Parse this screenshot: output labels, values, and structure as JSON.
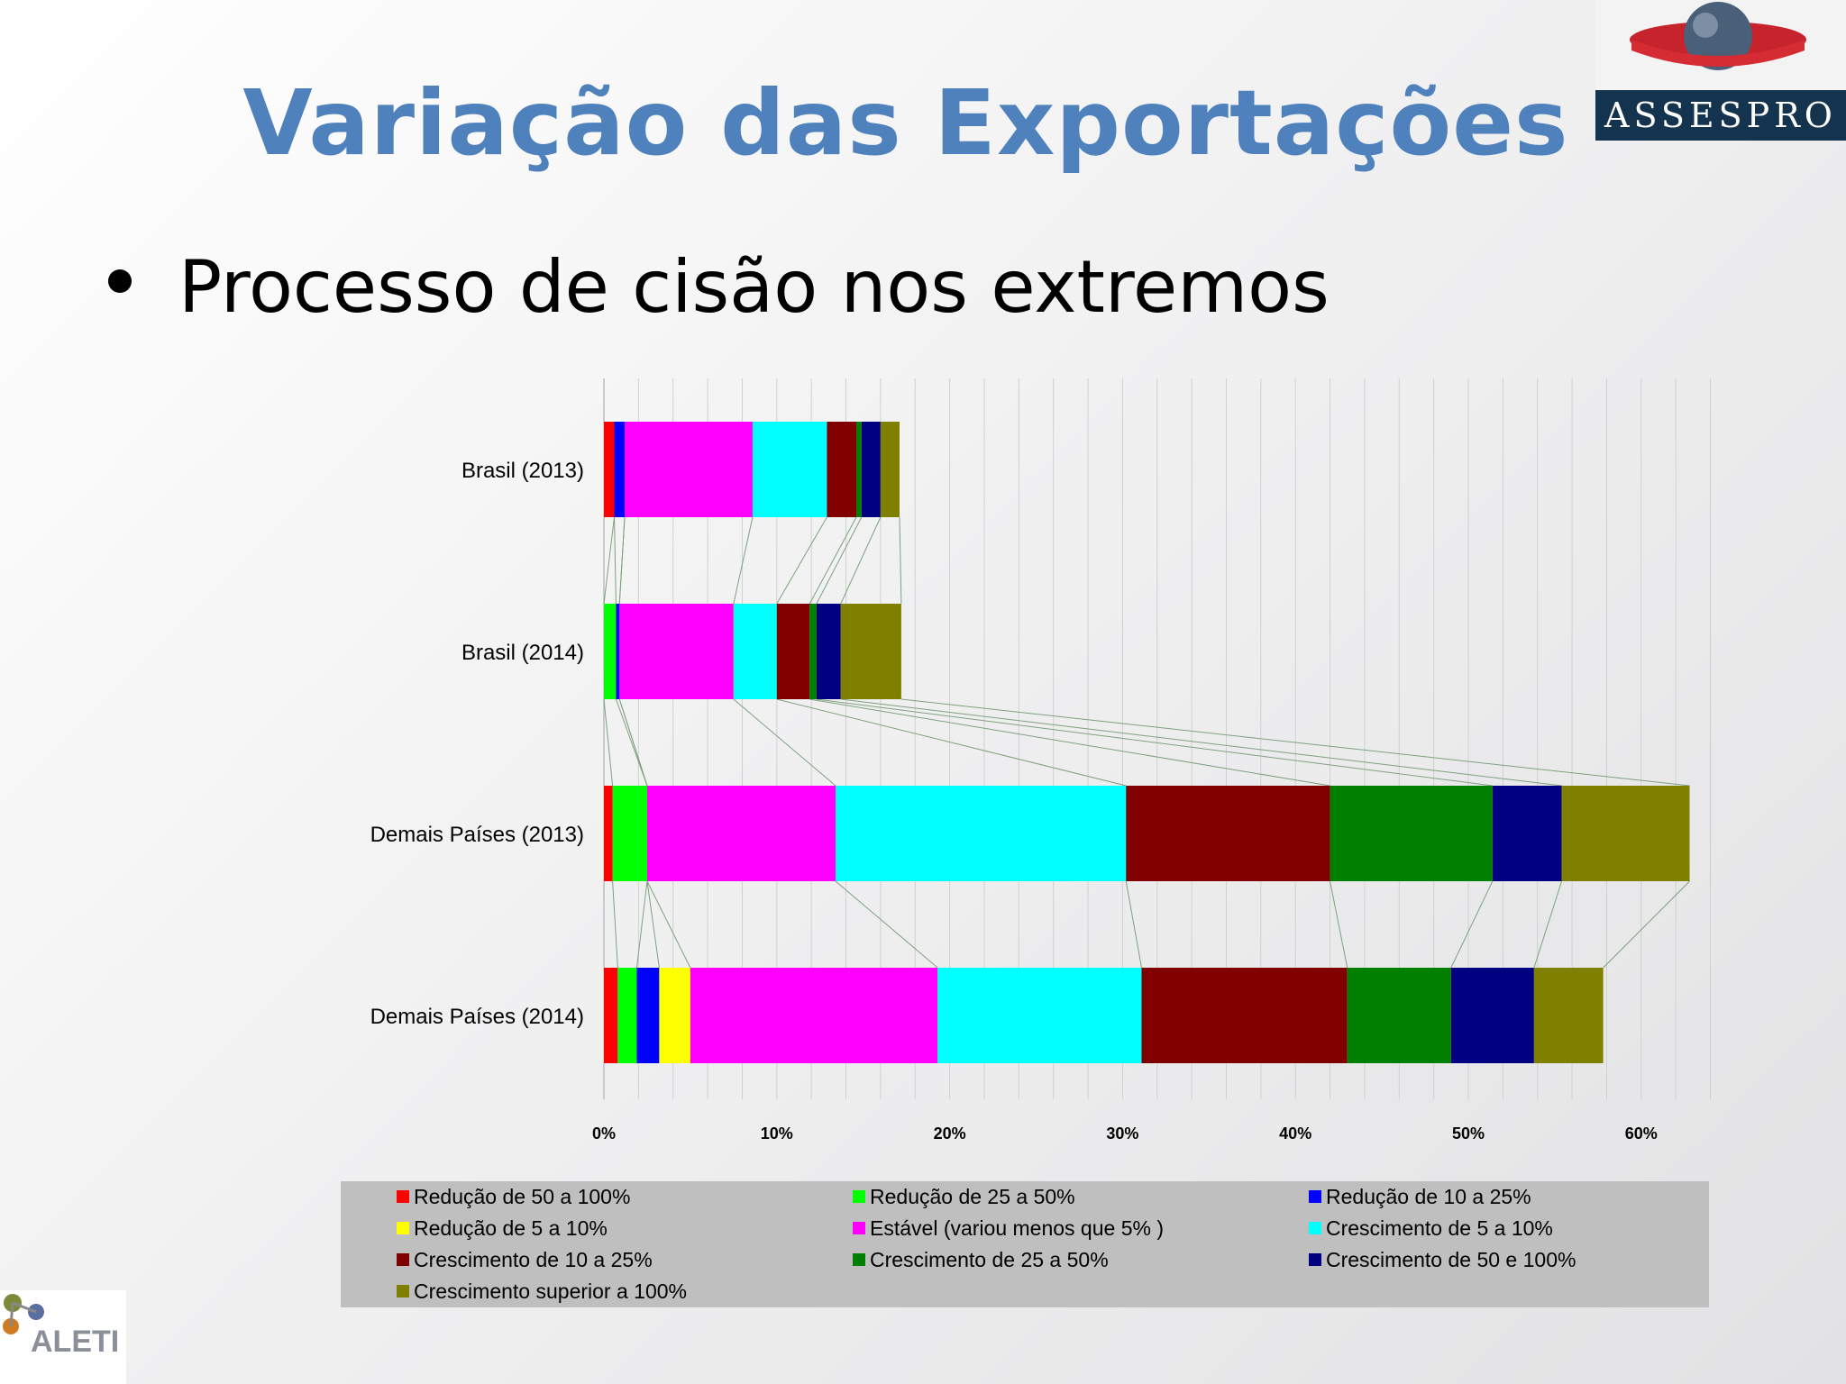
{
  "slide": {
    "title": "Variação das Exportações",
    "bullet": "Processo de cisão nos extremos",
    "logo_top": "ASSESPRO",
    "logo_bottom": "ALETI"
  },
  "chart_data": {
    "type": "bar",
    "orientation": "horizontal",
    "stacked": true,
    "categories": [
      "Brasil (2013)",
      "Brasil (2014)",
      "Demais Países (2013)",
      "Demais Países (2014)"
    ],
    "xlim": [
      0,
      0.65
    ],
    "xticks": [
      {
        "value": 0,
        "label": "0%"
      },
      {
        "value": 0.1,
        "label": "10%"
      },
      {
        "value": 0.2,
        "label": "20%"
      },
      {
        "value": 0.3,
        "label": "30%"
      },
      {
        "value": 0.4,
        "label": "40%"
      },
      {
        "value": 0.5,
        "label": "50%"
      },
      {
        "value": 0.6,
        "label": "60%"
      }
    ],
    "grid": true,
    "series_lines": true,
    "legend_position": "bottom",
    "series": [
      {
        "name": "Redução de 50 a 100%",
        "color": "#ff0000",
        "values": [
          0.006,
          0.0,
          0.005,
          0.008
        ]
      },
      {
        "name": "Redução de 25 a 50%",
        "color": "#00ff00",
        "values": [
          0.0,
          0.007,
          0.02,
          0.011
        ]
      },
      {
        "name": "Redução de 10 a 25%",
        "color": "#0000ff",
        "values": [
          0.006,
          0.002,
          0.0,
          0.013
        ]
      },
      {
        "name": "Redução de 5 a 10%",
        "color": "#ffff00",
        "values": [
          0.0,
          0.0,
          0.0,
          0.018
        ]
      },
      {
        "name": "Estável (variou menos que 5% )",
        "color": "#ff00ff",
        "values": [
          0.074,
          0.066,
          0.109,
          0.143
        ]
      },
      {
        "name": "Crescimento de 5 a 10%",
        "color": "#00ffff",
        "values": [
          0.043,
          0.025,
          0.168,
          0.118
        ]
      },
      {
        "name": "Crescimento de 10 a 25%",
        "color": "#800000",
        "values": [
          0.017,
          0.019,
          0.118,
          0.119
        ]
      },
      {
        "name": "Crescimento de 25 a 50%",
        "color": "#008000",
        "values": [
          0.003,
          0.004,
          0.094,
          0.06
        ]
      },
      {
        "name": "Crescimento de 50 e 100%",
        "color": "#000080",
        "values": [
          0.011,
          0.014,
          0.04,
          0.048
        ]
      },
      {
        "name": "Crescimento superior a 100%",
        "color": "#808000",
        "values": [
          0.011,
          0.035,
          0.074,
          0.04
        ]
      }
    ]
  }
}
